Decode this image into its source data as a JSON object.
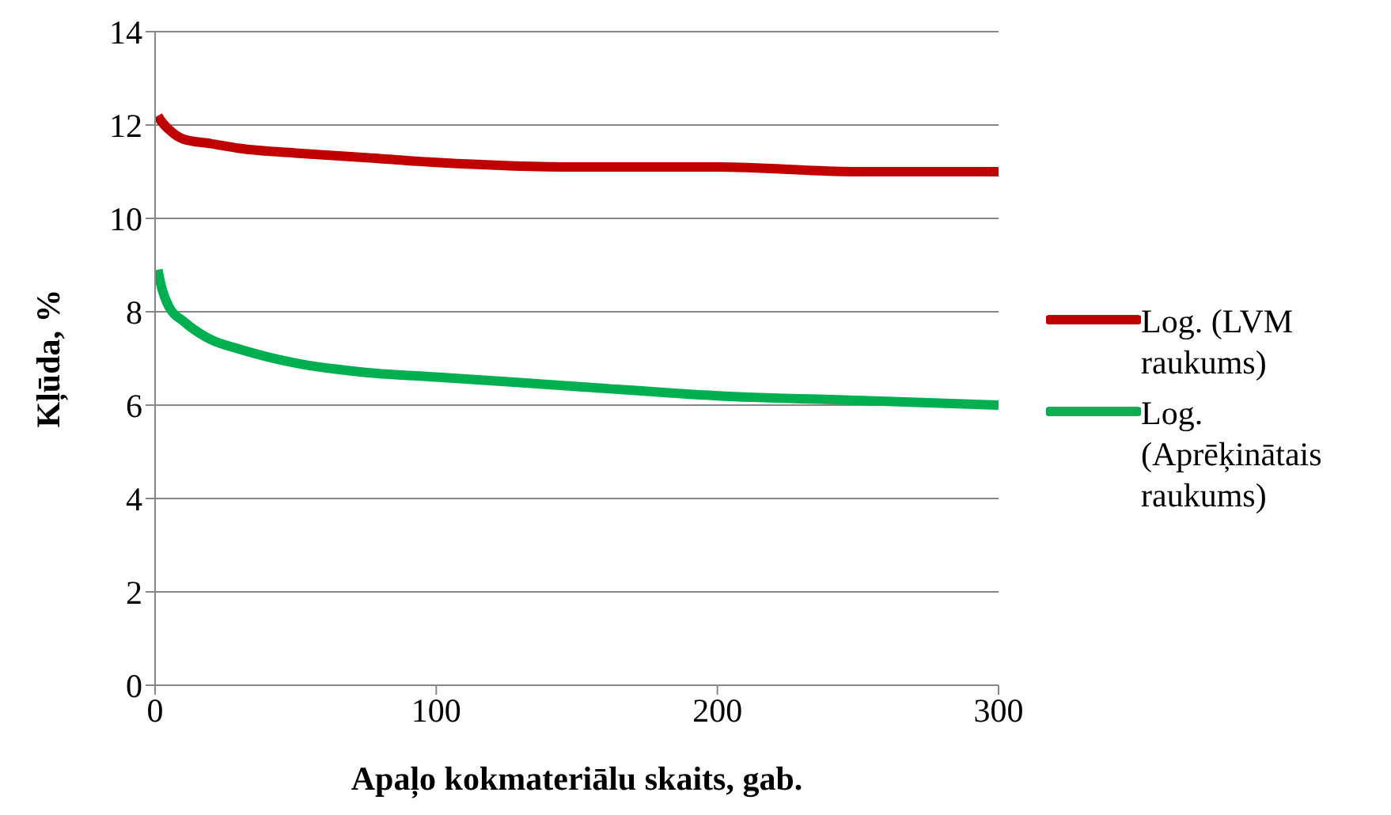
{
  "chart_data": {
    "type": "line",
    "xlabel": "Apaļo kokmateriālu skaits, gab.",
    "ylabel": "Kļūda, %",
    "x": [
      1,
      2,
      5,
      10,
      20,
      30,
      50,
      75,
      100,
      150,
      200,
      250,
      300
    ],
    "series": [
      {
        "name": "Log. (LVM raukums)",
        "color": "#c00000",
        "values": [
          12.2,
          12.1,
          11.9,
          11.7,
          11.6,
          11.5,
          11.4,
          11.3,
          11.2,
          11.1,
          11.1,
          11.0,
          11.0
        ]
      },
      {
        "name": "Log. (Aprēķinātais raukums)",
        "color": "#00b050",
        "values": [
          8.9,
          8.6,
          8.1,
          7.8,
          7.4,
          7.2,
          6.9,
          6.7,
          6.6,
          6.4,
          6.2,
          6.1,
          6.0
        ]
      }
    ],
    "xlim": [
      0,
      300
    ],
    "xticks": [
      0,
      100,
      200,
      300
    ],
    "ylim": [
      0,
      14
    ],
    "yticks": [
      0,
      2,
      4,
      6,
      8,
      10,
      12,
      14
    ],
    "grid": "y",
    "legend": "right",
    "marker": "none",
    "line_style": "solid"
  }
}
